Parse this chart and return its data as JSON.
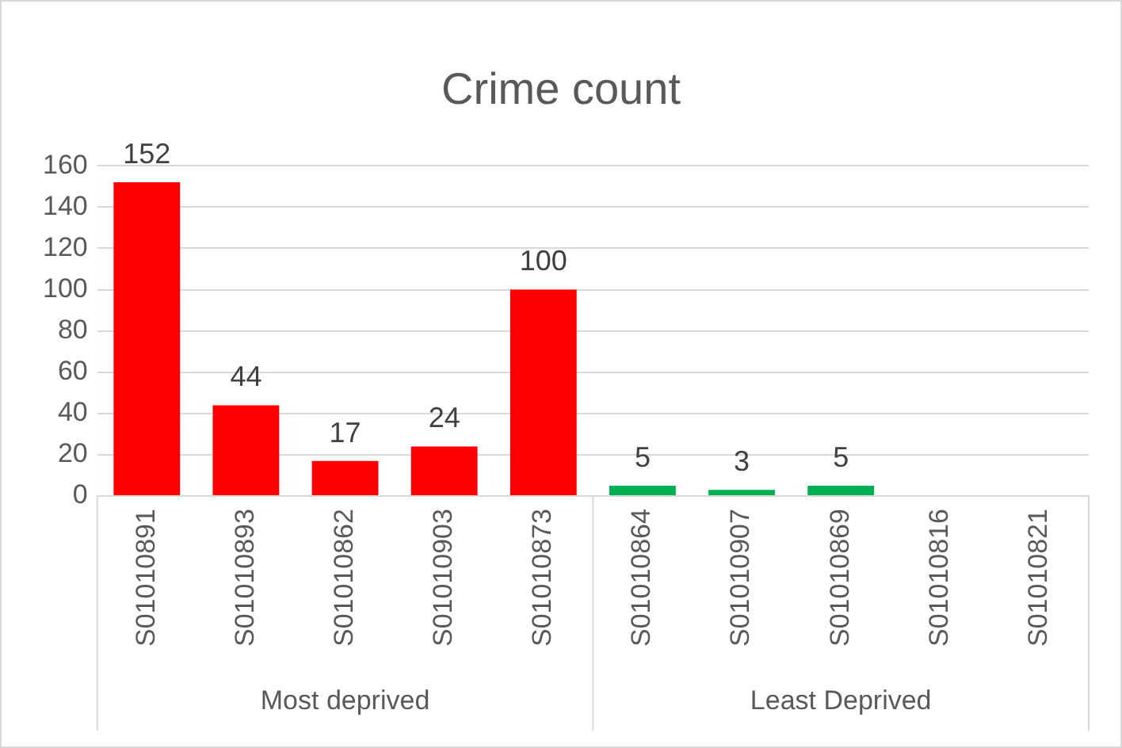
{
  "chart_data": {
    "type": "bar",
    "title": "Crime count",
    "categories": [
      "S01010891",
      "S01010893",
      "S01010862",
      "S01010903",
      "S01010873",
      "S01010864",
      "S01010907",
      "S01010869",
      "S01010816",
      "S01010821"
    ],
    "values": [
      152,
      44,
      17,
      24,
      100,
      5,
      3,
      5,
      null,
      null
    ],
    "colors": [
      "#ff0000",
      "#ff0000",
      "#ff0000",
      "#ff0000",
      "#ff0000",
      "#00b050",
      "#00b050",
      "#00b050",
      "#00b050",
      "#00b050"
    ],
    "ylim": [
      0,
      160
    ],
    "yticks": [
      0,
      20,
      40,
      60,
      80,
      100,
      120,
      140,
      160
    ],
    "grid": "y",
    "legend": false,
    "data_labels": true,
    "annotations": [
      "Most deprived",
      "Least Deprived"
    ]
  }
}
